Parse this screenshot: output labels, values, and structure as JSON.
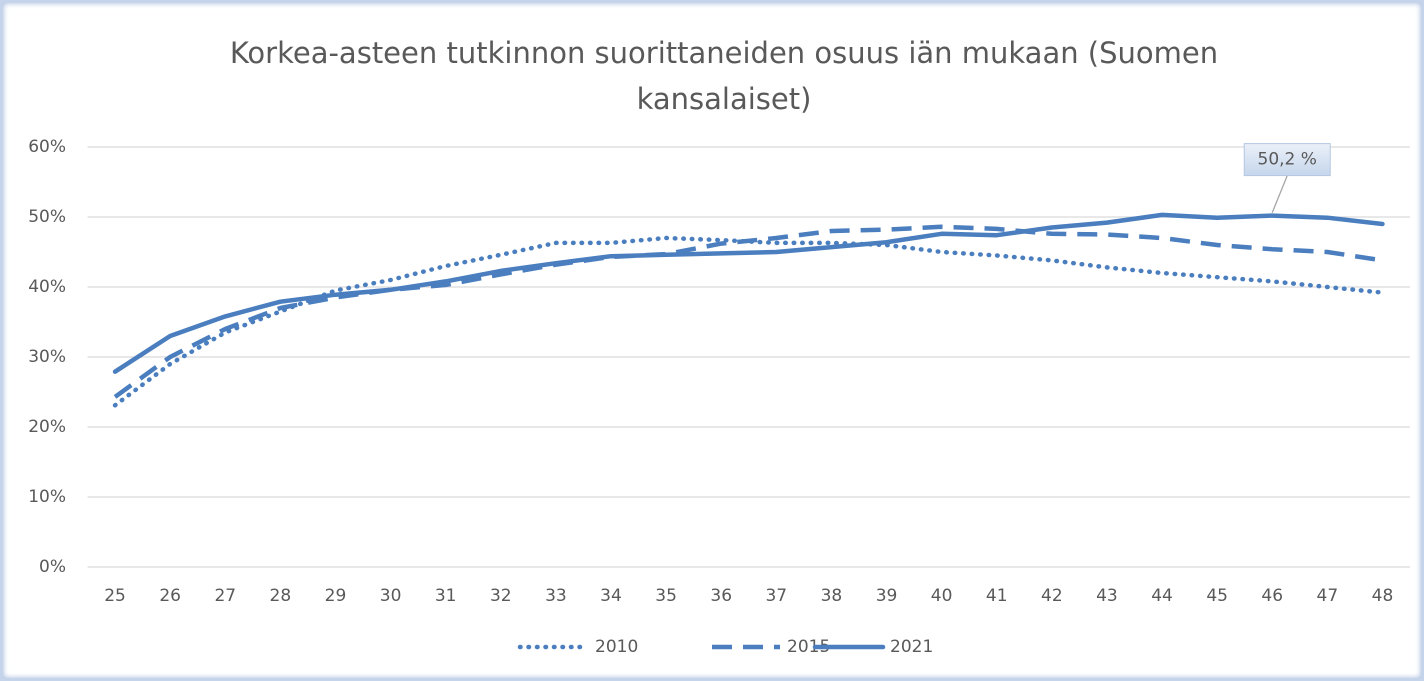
{
  "chart_data": {
    "type": "line",
    "title": "Korkea-asteen tutkinnon suorittaneiden osuus iän mukaan (Suomen kansalaiset)",
    "categories": [
      25,
      26,
      27,
      28,
      29,
      30,
      31,
      32,
      33,
      34,
      35,
      36,
      37,
      38,
      39,
      40,
      41,
      42,
      43,
      44,
      45,
      46,
      47,
      48
    ],
    "ylim": [
      0,
      60
    ],
    "yticks": [
      {
        "value": 0,
        "label": "0%"
      },
      {
        "value": 10,
        "label": "10%"
      },
      {
        "value": 20,
        "label": "20%"
      },
      {
        "value": 30,
        "label": "30%"
      },
      {
        "value": 40,
        "label": "40%"
      },
      {
        "value": 50,
        "label": "50%"
      },
      {
        "value": 60,
        "label": "60%"
      }
    ],
    "grid": true,
    "legend": "bottom",
    "series": [
      {
        "name": "2010",
        "color": "#4a7ebf",
        "style": "dotted",
        "values": [
          23.1,
          29,
          33.5,
          36.5,
          39.5,
          41,
          43,
          44.6,
          46.3,
          46.3,
          47,
          46.7,
          46.3,
          46.3,
          46,
          45,
          44.5,
          43.8,
          42.8,
          42,
          41.4,
          40.8,
          40,
          39.2
        ]
      },
      {
        "name": "2015",
        "color": "#4a7ebf",
        "style": "dashed",
        "values": [
          24.3,
          30,
          34,
          37,
          38.5,
          39.6,
          40.3,
          41.8,
          43.2,
          44.3,
          44.7,
          46.2,
          47,
          48,
          48.2,
          48.6,
          48.3,
          47.6,
          47.5,
          47,
          46,
          45.4,
          45,
          43.8
        ]
      },
      {
        "name": "2021",
        "color": "#4a7ebf",
        "style": "solid",
        "values": [
          27.9,
          33,
          35.8,
          37.9,
          38.9,
          39.6,
          40.8,
          42.3,
          43.4,
          44.4,
          44.6,
          44.8,
          45,
          45.7,
          46.4,
          47.6,
          47.4,
          48.5,
          49.2,
          50.3,
          49.9,
          50.2,
          49.9,
          49
        ],
        "value_labels": [
          null,
          null,
          null,
          null,
          null,
          null,
          null,
          null,
          null,
          null,
          null,
          null,
          null,
          null,
          null,
          null,
          null,
          null,
          null,
          null,
          null,
          "50,2 %",
          null,
          null
        ]
      }
    ]
  }
}
